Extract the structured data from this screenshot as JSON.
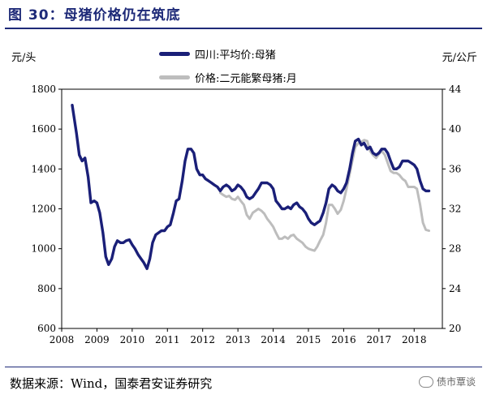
{
  "title": "图 30：母猪价格仍在筑底",
  "left_unit": "元/头",
  "right_unit": "元/公斤",
  "source": "数据来源：Wind，国泰君安证券研究",
  "watermark": "债市覃谈",
  "colors": {
    "series1": "#1a1f78",
    "series2": "#bdbdbd",
    "title": "#1e2a78"
  },
  "chart_data": {
    "type": "line",
    "x_ticks": [
      "2008",
      "2009",
      "2010",
      "2011",
      "2012",
      "2013",
      "2014",
      "2015",
      "2016",
      "2017",
      "2018"
    ],
    "xlim": [
      2008.0,
      2018.8
    ],
    "y_left": {
      "ticks": [
        600,
        800,
        1000,
        1200,
        1400,
        1600,
        1800
      ],
      "lim": [
        600,
        1800
      ]
    },
    "y_right": {
      "ticks": [
        20,
        24,
        28,
        32,
        36,
        40,
        44
      ],
      "lim": [
        20,
        44
      ]
    },
    "series": [
      {
        "name": "四川:平均价:母猪",
        "axis": "left",
        "points": [
          [
            2008.3,
            1720
          ],
          [
            2008.42,
            1580
          ],
          [
            2008.5,
            1470
          ],
          [
            2008.58,
            1440
          ],
          [
            2008.66,
            1455
          ],
          [
            2008.75,
            1360
          ],
          [
            2008.83,
            1230
          ],
          [
            2008.92,
            1240
          ],
          [
            2009.0,
            1230
          ],
          [
            2009.08,
            1180
          ],
          [
            2009.17,
            1080
          ],
          [
            2009.25,
            960
          ],
          [
            2009.33,
            920
          ],
          [
            2009.42,
            950
          ],
          [
            2009.5,
            1010
          ],
          [
            2009.58,
            1040
          ],
          [
            2009.67,
            1030
          ],
          [
            2009.75,
            1030
          ],
          [
            2009.83,
            1040
          ],
          [
            2009.92,
            1045
          ],
          [
            2010.0,
            1020
          ],
          [
            2010.08,
            1000
          ],
          [
            2010.17,
            970
          ],
          [
            2010.25,
            950
          ],
          [
            2010.33,
            930
          ],
          [
            2010.42,
            900
          ],
          [
            2010.5,
            950
          ],
          [
            2010.58,
            1030
          ],
          [
            2010.67,
            1070
          ],
          [
            2010.75,
            1080
          ],
          [
            2010.83,
            1090
          ],
          [
            2010.92,
            1090
          ],
          [
            2011.0,
            1110
          ],
          [
            2011.08,
            1120
          ],
          [
            2011.17,
            1180
          ],
          [
            2011.25,
            1240
          ],
          [
            2011.33,
            1250
          ],
          [
            2011.42,
            1340
          ],
          [
            2011.5,
            1440
          ],
          [
            2011.58,
            1500
          ],
          [
            2011.67,
            1500
          ],
          [
            2011.75,
            1480
          ],
          [
            2011.83,
            1400
          ],
          [
            2011.92,
            1370
          ],
          [
            2012.0,
            1370
          ],
          [
            2012.08,
            1350
          ],
          [
            2012.17,
            1340
          ],
          [
            2012.25,
            1330
          ],
          [
            2012.33,
            1320
          ],
          [
            2012.42,
            1310
          ],
          [
            2012.5,
            1290
          ],
          [
            2012.58,
            1310
          ],
          [
            2012.67,
            1320
          ],
          [
            2012.75,
            1310
          ],
          [
            2012.83,
            1290
          ],
          [
            2012.92,
            1300
          ],
          [
            2013.0,
            1320
          ],
          [
            2013.08,
            1310
          ],
          [
            2013.17,
            1290
          ],
          [
            2013.25,
            1260
          ],
          [
            2013.33,
            1250
          ],
          [
            2013.42,
            1260
          ],
          [
            2013.5,
            1280
          ],
          [
            2013.58,
            1300
          ],
          [
            2013.67,
            1330
          ],
          [
            2013.75,
            1330
          ],
          [
            2013.83,
            1330
          ],
          [
            2013.92,
            1320
          ],
          [
            2014.0,
            1300
          ],
          [
            2014.08,
            1240
          ],
          [
            2014.17,
            1220
          ],
          [
            2014.25,
            1200
          ],
          [
            2014.33,
            1200
          ],
          [
            2014.42,
            1210
          ],
          [
            2014.5,
            1200
          ],
          [
            2014.58,
            1220
          ],
          [
            2014.67,
            1230
          ],
          [
            2014.75,
            1210
          ],
          [
            2014.83,
            1200
          ],
          [
            2014.92,
            1180
          ],
          [
            2015.0,
            1150
          ],
          [
            2015.08,
            1130
          ],
          [
            2015.17,
            1120
          ],
          [
            2015.25,
            1130
          ],
          [
            2015.33,
            1140
          ],
          [
            2015.42,
            1180
          ],
          [
            2015.5,
            1230
          ],
          [
            2015.58,
            1300
          ],
          [
            2015.67,
            1320
          ],
          [
            2015.75,
            1310
          ],
          [
            2015.83,
            1290
          ],
          [
            2015.92,
            1280
          ],
          [
            2016.0,
            1300
          ],
          [
            2016.08,
            1330
          ],
          [
            2016.17,
            1400
          ],
          [
            2016.25,
            1480
          ],
          [
            2016.33,
            1540
          ],
          [
            2016.42,
            1550
          ],
          [
            2016.5,
            1520
          ],
          [
            2016.58,
            1530
          ],
          [
            2016.67,
            1500
          ],
          [
            2016.75,
            1510
          ],
          [
            2016.83,
            1480
          ],
          [
            2016.92,
            1470
          ],
          [
            2017.0,
            1480
          ],
          [
            2017.08,
            1500
          ],
          [
            2017.17,
            1500
          ],
          [
            2017.25,
            1480
          ],
          [
            2017.33,
            1440
          ],
          [
            2017.42,
            1400
          ],
          [
            2017.5,
            1400
          ],
          [
            2017.58,
            1410
          ],
          [
            2017.67,
            1440
          ],
          [
            2017.75,
            1440
          ],
          [
            2017.83,
            1440
          ],
          [
            2017.92,
            1430
          ],
          [
            2018.0,
            1420
          ],
          [
            2018.08,
            1400
          ],
          [
            2018.17,
            1340
          ],
          [
            2018.25,
            1300
          ],
          [
            2018.33,
            1290
          ],
          [
            2018.42,
            1290
          ]
        ]
      },
      {
        "name": "价格:二元能繁母猪:月",
        "axis": "right",
        "points": [
          [
            2012.5,
            33.6
          ],
          [
            2012.58,
            33.4
          ],
          [
            2012.67,
            33.2
          ],
          [
            2012.75,
            33.3
          ],
          [
            2012.83,
            33.0
          ],
          [
            2012.92,
            32.9
          ],
          [
            2013.0,
            33.2
          ],
          [
            2013.08,
            32.8
          ],
          [
            2013.17,
            32.4
          ],
          [
            2013.25,
            31.4
          ],
          [
            2013.33,
            31.0
          ],
          [
            2013.42,
            31.6
          ],
          [
            2013.5,
            31.8
          ],
          [
            2013.58,
            32.0
          ],
          [
            2013.67,
            31.8
          ],
          [
            2013.75,
            31.5
          ],
          [
            2013.83,
            31.0
          ],
          [
            2013.92,
            30.6
          ],
          [
            2014.0,
            30.2
          ],
          [
            2014.08,
            29.6
          ],
          [
            2014.17,
            29.0
          ],
          [
            2014.25,
            29.0
          ],
          [
            2014.33,
            29.2
          ],
          [
            2014.42,
            29.0
          ],
          [
            2014.5,
            29.3
          ],
          [
            2014.58,
            29.4
          ],
          [
            2014.67,
            29.0
          ],
          [
            2014.75,
            28.8
          ],
          [
            2014.83,
            28.6
          ],
          [
            2014.92,
            28.2
          ],
          [
            2015.0,
            28.0
          ],
          [
            2015.08,
            27.9
          ],
          [
            2015.17,
            27.8
          ],
          [
            2015.25,
            28.2
          ],
          [
            2015.33,
            28.8
          ],
          [
            2015.42,
            29.4
          ],
          [
            2015.5,
            30.6
          ],
          [
            2015.58,
            32.4
          ],
          [
            2015.67,
            32.4
          ],
          [
            2015.75,
            32.0
          ],
          [
            2015.83,
            31.5
          ],
          [
            2015.92,
            31.9
          ],
          [
            2016.0,
            32.8
          ],
          [
            2016.08,
            34.0
          ],
          [
            2016.17,
            35.5
          ],
          [
            2016.25,
            36.9
          ],
          [
            2016.33,
            38.2
          ],
          [
            2016.42,
            38.6
          ],
          [
            2016.5,
            38.7
          ],
          [
            2016.58,
            38.9
          ],
          [
            2016.67,
            38.8
          ],
          [
            2016.75,
            37.8
          ],
          [
            2016.83,
            37.4
          ],
          [
            2016.92,
            37.1
          ],
          [
            2017.0,
            37.5
          ],
          [
            2017.08,
            37.8
          ],
          [
            2017.17,
            37.4
          ],
          [
            2017.25,
            36.6
          ],
          [
            2017.33,
            35.8
          ],
          [
            2017.42,
            35.6
          ],
          [
            2017.5,
            35.6
          ],
          [
            2017.58,
            35.4
          ],
          [
            2017.67,
            35.0
          ],
          [
            2017.75,
            34.8
          ],
          [
            2017.83,
            34.2
          ],
          [
            2017.92,
            34.2
          ],
          [
            2018.0,
            34.2
          ],
          [
            2018.08,
            34.0
          ],
          [
            2018.17,
            32.4
          ],
          [
            2018.25,
            30.6
          ],
          [
            2018.33,
            29.9
          ],
          [
            2018.42,
            29.8
          ]
        ]
      }
    ]
  }
}
